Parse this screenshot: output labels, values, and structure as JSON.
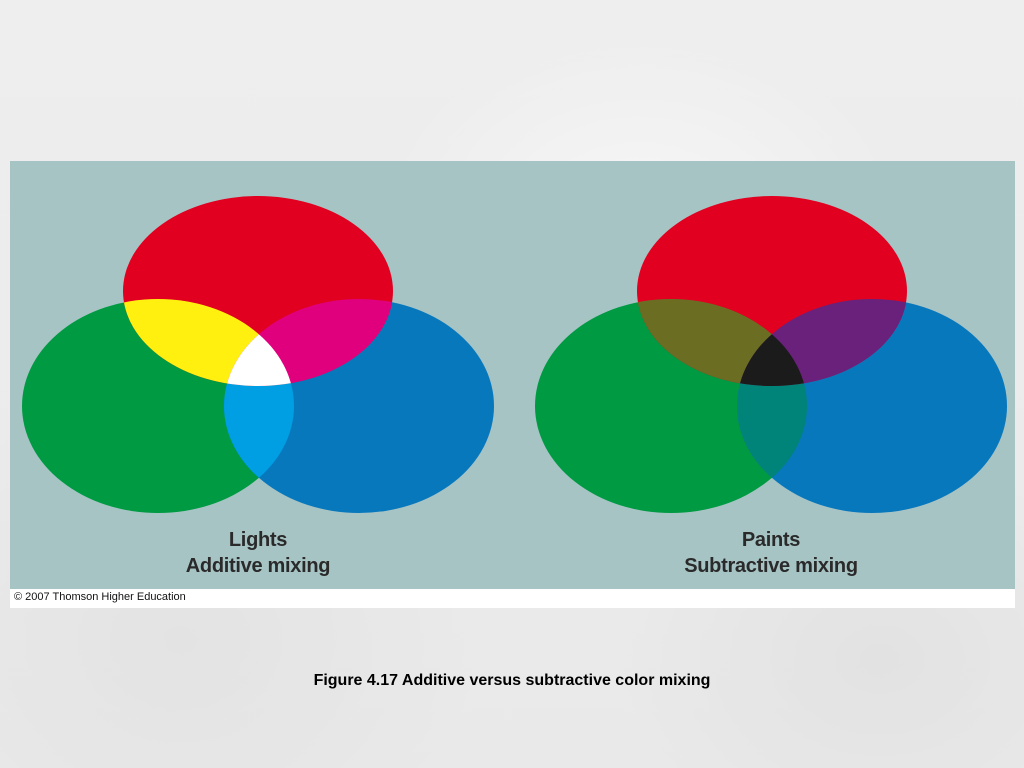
{
  "diagrams": [
    {
      "label_line1": "Lights",
      "label_line2": "Additive mixing",
      "colors": {
        "red": "#e10020",
        "green": "#009a43",
        "blue": "#0878bd",
        "red_green": "#fff010",
        "red_blue": "#e0007e",
        "green_blue": "#009ee3",
        "all": "#ffffff"
      }
    },
    {
      "label_line1": "Paints",
      "label_line2": "Subtractive mixing",
      "colors": {
        "red": "#e10020",
        "green": "#009a43",
        "blue": "#0878bd",
        "red_green": "#6b6d23",
        "red_blue": "#69217c",
        "green_blue": "#008379",
        "all": "#1b1b1b"
      }
    }
  ],
  "panel_background": "#a7c4c5",
  "credit": "© 2007 Thomson Higher Education",
  "caption": "Figure 4.17  Additive versus subtractive color mixing"
}
